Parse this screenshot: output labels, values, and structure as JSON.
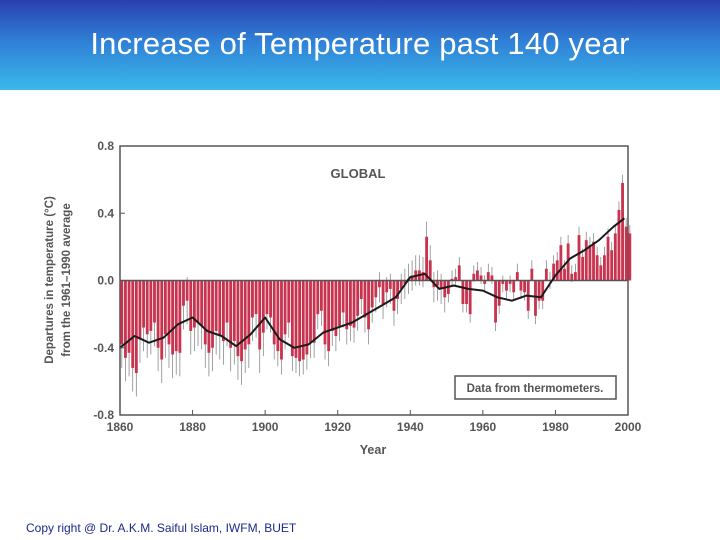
{
  "slide": {
    "title": "Increase of Temperature past 140 year",
    "footer": "Copy right @ Dr. A.K.M. Saiful Islam, IWFM, BUET"
  },
  "chart_data": {
    "type": "bar",
    "title": "GLOBAL",
    "annotation": "Data from thermometers.",
    "xlabel": "Year",
    "ylabel_line1": "Departures in temperature (°C)",
    "ylabel_line2": "from the 1961–1990 average",
    "xlim": [
      1860,
      2000
    ],
    "ylim": [
      -0.8,
      0.8
    ],
    "x_ticks": [
      1860,
      1880,
      1900,
      1920,
      1940,
      1960,
      1980,
      2000
    ],
    "y_ticks": [
      0.8,
      0.4,
      0.0,
      -0.4,
      -0.8
    ],
    "y_tick_labels": [
      "0.8",
      "0.4",
      "0.0",
      "-0.4",
      "-0.8"
    ],
    "colors": {
      "bars": "#c8344f",
      "error_bars": "#8a8a8a",
      "smooth": "#1a1a1a",
      "axis": "#555555"
    },
    "smooth_curve": {
      "x": [
        1860,
        1864,
        1868,
        1872,
        1876,
        1880,
        1884,
        1888,
        1892,
        1896,
        1900,
        1904,
        1908,
        1912,
        1916,
        1920,
        1924,
        1928,
        1932,
        1936,
        1940,
        1944,
        1948,
        1952,
        1956,
        1960,
        1964,
        1968,
        1972,
        1976,
        1980,
        1984,
        1988,
        1992,
        1996,
        1999
      ],
      "y": [
        -0.4,
        -0.33,
        -0.37,
        -0.34,
        -0.26,
        -0.22,
        -0.3,
        -0.33,
        -0.39,
        -0.32,
        -0.22,
        -0.35,
        -0.4,
        -0.38,
        -0.31,
        -0.28,
        -0.25,
        -0.2,
        -0.15,
        -0.1,
        0.02,
        0.04,
        -0.05,
        -0.03,
        -0.05,
        -0.06,
        -0.1,
        -0.12,
        -0.09,
        -0.1,
        0.03,
        0.13,
        0.18,
        0.24,
        0.32,
        0.37
      ]
    },
    "annual": {
      "start_year": 1860,
      "values": [
        -0.38,
        -0.46,
        -0.43,
        -0.52,
        -0.55,
        -0.35,
        -0.28,
        -0.32,
        -0.3,
        -0.25,
        -0.4,
        -0.47,
        -0.32,
        -0.38,
        -0.44,
        -0.42,
        -0.43,
        -0.15,
        -0.12,
        -0.3,
        -0.28,
        -0.25,
        -0.27,
        -0.38,
        -0.43,
        -0.4,
        -0.3,
        -0.33,
        -0.36,
        -0.25,
        -0.4,
        -0.36,
        -0.45,
        -0.48,
        -0.41,
        -0.38,
        -0.22,
        -0.2,
        -0.41,
        -0.31,
        -0.2,
        -0.22,
        -0.38,
        -0.42,
        -0.47,
        -0.32,
        -0.25,
        -0.45,
        -0.46,
        -0.48,
        -0.47,
        -0.44,
        -0.37,
        -0.37,
        -0.2,
        -0.18,
        -0.38,
        -0.42,
        -0.3,
        -0.33,
        -0.27,
        -0.19,
        -0.29,
        -0.27,
        -0.28,
        -0.21,
        -0.11,
        -0.22,
        -0.29,
        -0.16,
        -0.1,
        -0.04,
        -0.14,
        -0.07,
        -0.05,
        -0.18,
        -0.11,
        -0.05,
        -0.02,
        0.01,
        0.03,
        0.06,
        0.06,
        0.05,
        0.26,
        0.12,
        -0.04,
        -0.03,
        -0.05,
        -0.1,
        -0.08,
        0.01,
        0.02,
        0.09,
        -0.14,
        -0.14,
        -0.2,
        0.04,
        0.06,
        0.03,
        -0.02,
        0.05,
        0.03,
        -0.25,
        -0.15,
        -0.02,
        -0.06,
        -0.02,
        -0.07,
        0.05,
        -0.06,
        -0.07,
        -0.18,
        0.07,
        -0.21,
        -0.12,
        -0.12,
        0.07,
        0.0,
        0.1,
        0.12,
        0.21,
        0.07,
        0.22,
        0.04,
        0.05,
        0.27,
        0.14,
        0.24,
        0.21,
        0.23,
        0.15,
        0.09,
        0.15,
        0.26,
        0.18,
        0.28,
        0.42,
        0.58,
        0.32,
        0.28
      ]
    }
  }
}
